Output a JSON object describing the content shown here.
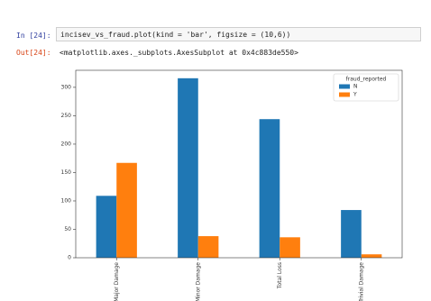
{
  "input_prompt": "In [24]:",
  "code": "incisev_vs_fraud.plot(kind = 'bar', figsize = (10,6))",
  "output_prompt": "Out[24]:",
  "output_text": "<matplotlib.axes._subplots.AxesSubplot at 0x4c883de550>",
  "chart_data": {
    "type": "bar",
    "categories": [
      "Major Damage",
      "Minor Damage",
      "Total Loss",
      "Trivial Damage"
    ],
    "series": [
      {
        "name": "N",
        "color": "#1f77b4",
        "values": [
          109,
          316,
          244,
          84
        ]
      },
      {
        "name": "Y",
        "color": "#ff7f0e",
        "values": [
          167,
          38,
          36,
          6
        ]
      }
    ],
    "legend_title": "fraud_reported",
    "legend": "upper right",
    "ylim": [
      0,
      330
    ],
    "yticks": [
      0,
      50,
      100,
      150,
      200,
      250,
      300
    ],
    "grid": false
  }
}
